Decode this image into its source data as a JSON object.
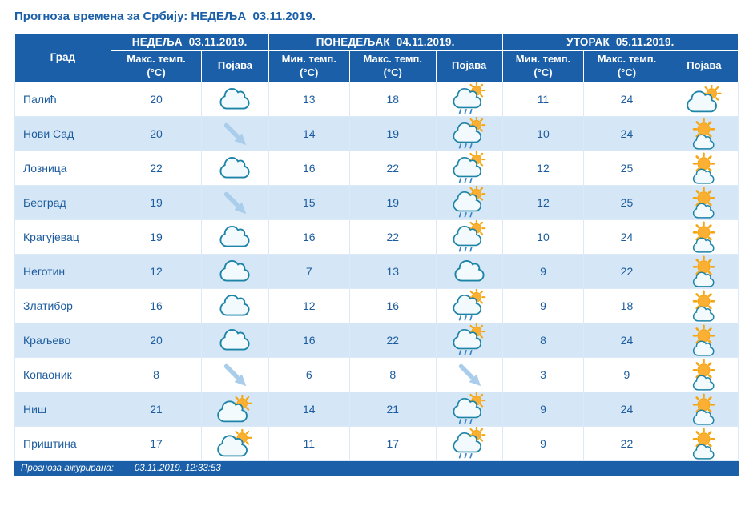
{
  "title": "Прогноза времена за Србију: НЕДЕЉА  03.11.2019.",
  "table": {
    "days": [
      "НЕДЕЉА  03.11.2019.",
      "ПОНЕДЕЉАК  04.11.2019.",
      "УТОРАК  05.11.2019."
    ],
    "columns": {
      "city": "Град",
      "max": "Макс. темп.",
      "min": "Мин. темп.",
      "unit": "(°C)",
      "phenomenon": "Појава"
    },
    "rows": [
      {
        "city": "Палић",
        "d1": {
          "max": "20",
          "icon": "cloud"
        },
        "d2": {
          "min": "13",
          "max": "18",
          "icon": "rain_sun"
        },
        "d3": {
          "min": "11",
          "max": "24",
          "icon": "cloud_sun"
        }
      },
      {
        "city": "Нови Сад",
        "d1": {
          "max": "20",
          "icon": "wind"
        },
        "d2": {
          "min": "14",
          "max": "19",
          "icon": "rain_sun"
        },
        "d3": {
          "min": "10",
          "max": "24",
          "icon": "sun_cloud"
        }
      },
      {
        "city": "Лозница",
        "d1": {
          "max": "22",
          "icon": "cloud"
        },
        "d2": {
          "min": "16",
          "max": "22",
          "icon": "rain_sun"
        },
        "d3": {
          "min": "12",
          "max": "25",
          "icon": "sun_cloud"
        }
      },
      {
        "city": "Београд",
        "d1": {
          "max": "19",
          "icon": "wind"
        },
        "d2": {
          "min": "15",
          "max": "19",
          "icon": "rain_sun"
        },
        "d3": {
          "min": "12",
          "max": "25",
          "icon": "sun_cloud"
        }
      },
      {
        "city": "Крагујевац",
        "d1": {
          "max": "19",
          "icon": "cloud"
        },
        "d2": {
          "min": "16",
          "max": "22",
          "icon": "rain_sun"
        },
        "d3": {
          "min": "10",
          "max": "24",
          "icon": "sun_cloud"
        }
      },
      {
        "city": "Неготин",
        "d1": {
          "max": "12",
          "icon": "cloud"
        },
        "d2": {
          "min": "7",
          "max": "13",
          "icon": "cloud"
        },
        "d3": {
          "min": "9",
          "max": "22",
          "icon": "sun_cloud"
        }
      },
      {
        "city": "Златибор",
        "d1": {
          "max": "16",
          "icon": "cloud"
        },
        "d2": {
          "min": "12",
          "max": "16",
          "icon": "rain_sun"
        },
        "d3": {
          "min": "9",
          "max": "18",
          "icon": "sun_cloud"
        }
      },
      {
        "city": "Краљево",
        "d1": {
          "max": "20",
          "icon": "cloud"
        },
        "d2": {
          "min": "16",
          "max": "22",
          "icon": "rain_sun"
        },
        "d3": {
          "min": "8",
          "max": "24",
          "icon": "sun_cloud"
        }
      },
      {
        "city": "Копаоник",
        "d1": {
          "max": "8",
          "icon": "wind"
        },
        "d2": {
          "min": "6",
          "max": "8",
          "icon": "wind"
        },
        "d3": {
          "min": "3",
          "max": "9",
          "icon": "sun_cloud"
        }
      },
      {
        "city": "Ниш",
        "d1": {
          "max": "21",
          "icon": "cloud_sun"
        },
        "d2": {
          "min": "14",
          "max": "21",
          "icon": "rain_sun"
        },
        "d3": {
          "min": "9",
          "max": "24",
          "icon": "sun_cloud"
        }
      },
      {
        "city": "Приштина",
        "d1": {
          "max": "17",
          "icon": "cloud_sun"
        },
        "d2": {
          "min": "11",
          "max": "17",
          "icon": "rain_sun"
        },
        "d3": {
          "min": "9",
          "max": "22",
          "icon": "sun_cloud"
        }
      }
    ]
  },
  "footer": {
    "label": "Прогноза ажурирана:",
    "timestamp": "03.11.2019. 12:33:53"
  },
  "colors": {
    "header_bg": "#1a5fa8",
    "title_text": "#1a5fa8",
    "cell_text": "#1d5c9e",
    "row_alt_bg": "#d5e7f6",
    "cloud_outline": "#1d84a8",
    "sun_fill": "#fbb034",
    "sun_rays": "#f6a50f",
    "rain_drops": "#3a87c8",
    "wind_arrow": "#a9cdea"
  }
}
